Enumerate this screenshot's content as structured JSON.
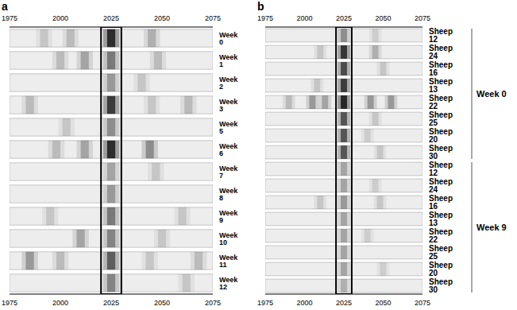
{
  "chart_data": [
    {
      "type": "heatmap",
      "panel": "a",
      "xlim": [
        1975,
        2075
      ],
      "xticks": [
        1975,
        2000,
        2025,
        2050,
        2075
      ],
      "highlight": [
        2020,
        2030
      ],
      "lanes": [
        {
          "label": "Week 0",
          "bands": [
            {
              "x": 2025,
              "intensity": 0.95
            },
            {
              "x": 2005,
              "intensity": 0.2
            },
            {
              "x": 2045,
              "intensity": 0.25
            },
            {
              "x": 1992,
              "intensity": 0.15
            }
          ]
        },
        {
          "label": "Week 1",
          "bands": [
            {
              "x": 2025,
              "intensity": 0.5
            },
            {
              "x": 2012,
              "intensity": 0.3
            },
            {
              "x": 2000,
              "intensity": 0.2
            },
            {
              "x": 2048,
              "intensity": 0.2
            }
          ]
        },
        {
          "label": "Week 2",
          "bands": [
            {
              "x": 2025,
              "intensity": 0.35
            },
            {
              "x": 2040,
              "intensity": 0.15
            }
          ]
        },
        {
          "label": "Week 3",
          "bands": [
            {
              "x": 2025,
              "intensity": 0.85
            },
            {
              "x": 1985,
              "intensity": 0.2
            },
            {
              "x": 2063,
              "intensity": 0.2
            },
            {
              "x": 2045,
              "intensity": 0.15
            }
          ]
        },
        {
          "label": "Week 5",
          "bands": [
            {
              "x": 2025,
              "intensity": 0.4
            },
            {
              "x": 2003,
              "intensity": 0.15
            }
          ]
        },
        {
          "label": "Week 6",
          "bands": [
            {
              "x": 2025,
              "intensity": 0.95
            },
            {
              "x": 2012,
              "intensity": 0.3
            },
            {
              "x": 2044,
              "intensity": 0.4
            },
            {
              "x": 1998,
              "intensity": 0.2
            }
          ]
        },
        {
          "label": "Week 7",
          "bands": [
            {
              "x": 2025,
              "intensity": 0.3
            },
            {
              "x": 2047,
              "intensity": 0.15
            }
          ]
        },
        {
          "label": "Week 8",
          "bands": [
            {
              "x": 2025,
              "intensity": 0.35
            }
          ]
        },
        {
          "label": "Week 9",
          "bands": [
            {
              "x": 2025,
              "intensity": 0.5
            },
            {
              "x": 2060,
              "intensity": 0.15
            },
            {
              "x": 1995,
              "intensity": 0.15
            }
          ]
        },
        {
          "label": "Week 10",
          "bands": [
            {
              "x": 2025,
              "intensity": 0.45
            },
            {
              "x": 2010,
              "intensity": 0.3
            },
            {
              "x": 2050,
              "intensity": 0.15
            }
          ]
        },
        {
          "label": "Week 11",
          "bands": [
            {
              "x": 2025,
              "intensity": 0.65
            },
            {
              "x": 1985,
              "intensity": 0.35
            },
            {
              "x": 2000,
              "intensity": 0.2
            },
            {
              "x": 2044,
              "intensity": 0.15
            },
            {
              "x": 2068,
              "intensity": 0.2
            }
          ]
        },
        {
          "label": "Week 12",
          "bands": [
            {
              "x": 2025,
              "intensity": 0.45
            },
            {
              "x": 2062,
              "intensity": 0.15
            }
          ]
        }
      ]
    },
    {
      "type": "heatmap",
      "panel": "b",
      "xlim": [
        1975,
        2075
      ],
      "xticks": [
        1975,
        2000,
        2025,
        2050,
        2075
      ],
      "highlight": [
        2020,
        2030
      ],
      "lanes": [
        {
          "label": "Sheep 12",
          "group": "Week 0",
          "bands": [
            {
              "x": 2025,
              "intensity": 0.4
            },
            {
              "x": 2045,
              "intensity": 0.12
            }
          ]
        },
        {
          "label": "Sheep 24",
          "group": "Week 0",
          "bands": [
            {
              "x": 2025,
              "intensity": 0.9
            },
            {
              "x": 2045,
              "intensity": 0.25
            },
            {
              "x": 2010,
              "intensity": 0.15
            }
          ]
        },
        {
          "label": "Sheep 16",
          "group": "Week 0",
          "bands": [
            {
              "x": 2025,
              "intensity": 0.75
            },
            {
              "x": 2050,
              "intensity": 0.15
            }
          ]
        },
        {
          "label": "Sheep 13",
          "group": "Week 0",
          "bands": [
            {
              "x": 2025,
              "intensity": 0.85
            },
            {
              "x": 2008,
              "intensity": 0.15
            }
          ]
        },
        {
          "label": "Sheep 22",
          "group": "Week 0",
          "bands": [
            {
              "x": 2025,
              "intensity": 1.0
            },
            {
              "x": 2005,
              "intensity": 0.35
            },
            {
              "x": 2013,
              "intensity": 0.3
            },
            {
              "x": 2042,
              "intensity": 0.35
            },
            {
              "x": 2055,
              "intensity": 0.35
            },
            {
              "x": 1990,
              "intensity": 0.2
            }
          ]
        },
        {
          "label": "Sheep 25",
          "group": "Week 0",
          "bands": [
            {
              "x": 2025,
              "intensity": 0.7
            },
            {
              "x": 2045,
              "intensity": 0.15
            }
          ]
        },
        {
          "label": "Sheep 20",
          "group": "Week 0",
          "bands": [
            {
              "x": 2025,
              "intensity": 0.7
            },
            {
              "x": 2040,
              "intensity": 0.12
            }
          ]
        },
        {
          "label": "Sheep 30",
          "group": "Week 0",
          "bands": [
            {
              "x": 2025,
              "intensity": 0.7
            },
            {
              "x": 2048,
              "intensity": 0.15
            }
          ]
        },
        {
          "label": "Sheep 12",
          "group": "Week 9",
          "bands": [
            {
              "x": 2025,
              "intensity": 0.3
            }
          ]
        },
        {
          "label": "Sheep 24",
          "group": "Week 9",
          "bands": [
            {
              "x": 2025,
              "intensity": 0.3
            },
            {
              "x": 2045,
              "intensity": 0.12
            }
          ]
        },
        {
          "label": "Sheep 16",
          "group": "Week 9",
          "bands": [
            {
              "x": 2025,
              "intensity": 0.35
            },
            {
              "x": 2010,
              "intensity": 0.15
            },
            {
              "x": 2048,
              "intensity": 0.15
            }
          ]
        },
        {
          "label": "Sheep 13",
          "group": "Week 9",
          "bands": [
            {
              "x": 2025,
              "intensity": 0.3
            }
          ]
        },
        {
          "label": "Sheep 22",
          "group": "Week 9",
          "bands": [
            {
              "x": 2025,
              "intensity": 0.3
            },
            {
              "x": 2040,
              "intensity": 0.12
            }
          ]
        },
        {
          "label": "Sheep 25",
          "group": "Week 9",
          "bands": [
            {
              "x": 2025,
              "intensity": 0.3
            }
          ]
        },
        {
          "label": "Sheep 20",
          "group": "Week 9",
          "bands": [
            {
              "x": 2025,
              "intensity": 0.3
            },
            {
              "x": 2050,
              "intensity": 0.12
            }
          ]
        },
        {
          "label": "Sheep 30",
          "group": "Week 9",
          "bands": [
            {
              "x": 2025,
              "intensity": 0.25
            }
          ]
        }
      ]
    }
  ]
}
